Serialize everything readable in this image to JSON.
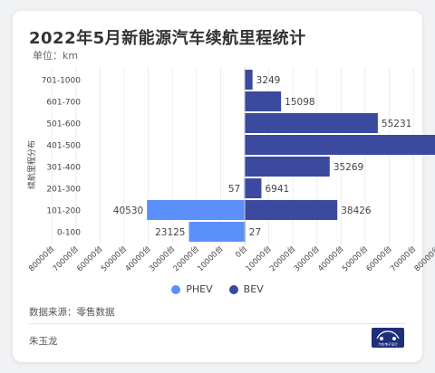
{
  "page": {
    "title": "2022年5月新能源汽车续航里程统计",
    "unit_text": "单位：km",
    "source_text": "数据来源：零售数据",
    "author": "朱玉龙",
    "logo_text": "汽车电子设计"
  },
  "colors": {
    "phev": "#5b8ff9",
    "bev": "#3b4a9e",
    "background": "#f1f2f4"
  },
  "chart_data": {
    "type": "bar",
    "orientation": "horizontal",
    "layout": "diverging",
    "title": "2022年5月新能源汽车续航里程统计",
    "ylabel": "续航里程分布",
    "categories": [
      "701-1000",
      "601-700",
      "501-600",
      "401-500",
      "301-400",
      "201-300",
      "101-200",
      "0-100"
    ],
    "series": [
      {
        "name": "PHEV",
        "direction": "left",
        "values": [
          null,
          null,
          null,
          null,
          null,
          57,
          40530,
          23125
        ]
      },
      {
        "name": "BEV",
        "direction": "right",
        "values": [
          3249,
          15098,
          55231,
          82833,
          35269,
          6941,
          38426,
          27
        ]
      }
    ],
    "x_ticks": [
      "80000台",
      "70000台",
      "60000台",
      "50000台",
      "40000台",
      "30000台",
      "20000台",
      "10000台",
      "0台",
      "10000台",
      "20000台",
      "30000台",
      "40000台",
      "50000台",
      "60000台",
      "70000台",
      "80000台"
    ],
    "xlim": [
      -80000,
      80000
    ],
    "grid": true,
    "legend_position": "bottom"
  }
}
